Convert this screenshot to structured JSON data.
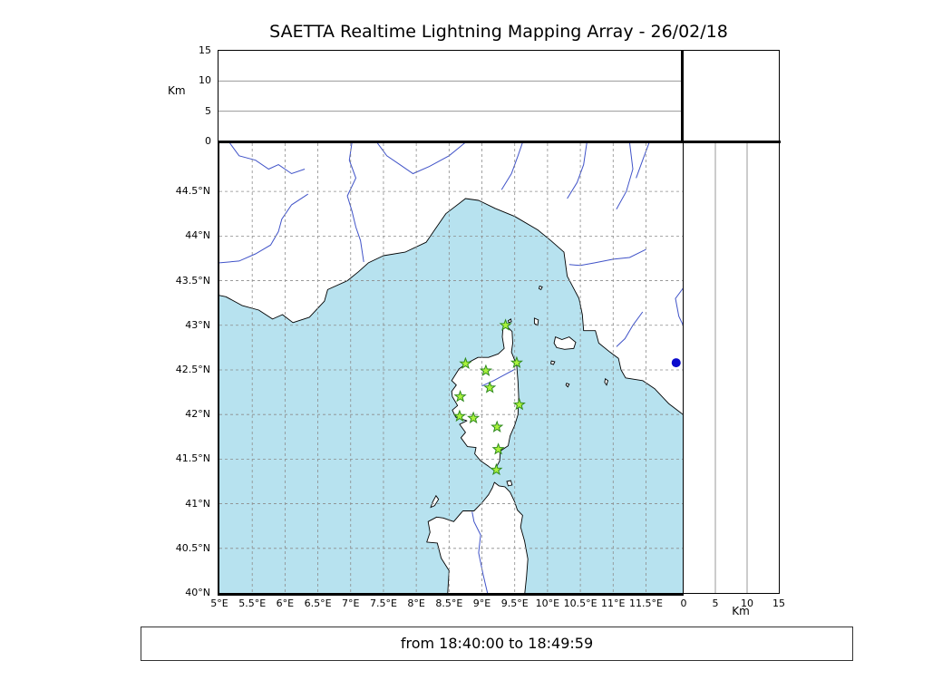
{
  "title": "SAETTA Realtime Lightning Mapping Array - 26/02/18",
  "status_text": "from 18:40:00 to 18:49:59",
  "axes": {
    "km_label": "Km",
    "km_ticks": [
      0,
      5,
      10,
      15
    ],
    "km_max": 15,
    "lon_range": [
      5,
      12.06
    ],
    "lat_range": [
      40,
      45.04
    ],
    "lon_ticks": [
      {
        "value": 5,
        "label": "5°E"
      },
      {
        "value": 5.5,
        "label": "5.5°E"
      },
      {
        "value": 6,
        "label": "6°E"
      },
      {
        "value": 6.5,
        "label": "6.5°E"
      },
      {
        "value": 7,
        "label": "7°E"
      },
      {
        "value": 7.5,
        "label": "7.5°E"
      },
      {
        "value": 8,
        "label": "8°E"
      },
      {
        "value": 8.5,
        "label": "8.5°E"
      },
      {
        "value": 9,
        "label": "9°E"
      },
      {
        "value": 9.5,
        "label": "9.5°E"
      },
      {
        "value": 10,
        "label": "10°E"
      },
      {
        "value": 10.5,
        "label": "10.5°E"
      },
      {
        "value": 11,
        "label": "11°E"
      },
      {
        "value": 11.5,
        "label": "11.5°E"
      }
    ],
    "lat_ticks": [
      {
        "value": 44.5,
        "label": "44.5°N"
      },
      {
        "value": 44,
        "label": "44°N"
      },
      {
        "value": 43.5,
        "label": "43.5°N"
      },
      {
        "value": 43,
        "label": "43°N"
      },
      {
        "value": 42.5,
        "label": "42.5°N"
      },
      {
        "value": 42,
        "label": "42°N"
      },
      {
        "value": 41.5,
        "label": "41.5°N"
      },
      {
        "value": 41,
        "label": "41°N"
      },
      {
        "value": 40.5,
        "label": "40.5°N"
      },
      {
        "value": 40,
        "label": "40°N"
      }
    ]
  },
  "stations_lon_lat": [
    [
      9.36,
      43.0
    ],
    [
      8.75,
      42.57
    ],
    [
      9.06,
      42.49
    ],
    [
      9.53,
      42.58
    ],
    [
      9.12,
      42.3
    ],
    [
      8.67,
      42.2
    ],
    [
      9.57,
      42.11
    ],
    [
      8.66,
      41.98
    ],
    [
      8.87,
      41.96
    ],
    [
      9.23,
      41.86
    ],
    [
      9.25,
      41.61
    ],
    [
      9.22,
      41.38
    ]
  ],
  "lightning_sources_lon_lat": [
    [
      11.96,
      42.58
    ]
  ],
  "colors": {
    "sea": "#b7e2ef",
    "land": "#ffffff",
    "coastline": "#000000",
    "river": "#4053c8",
    "graticule": "#8c8c8c",
    "panel_grid": "#9a9a9a",
    "station_fill": "#aaf23c",
    "station_stroke": "#2f8a1d",
    "source": "#0b0bcd",
    "frame": "#000000"
  },
  "geo": {
    "mainland": [
      [
        4.9,
        43.35
      ],
      [
        5.1,
        43.32
      ],
      [
        5.35,
        43.22
      ],
      [
        5.6,
        43.17
      ],
      [
        5.81,
        43.07
      ],
      [
        5.96,
        43.12
      ],
      [
        6.12,
        43.03
      ],
      [
        6.37,
        43.09
      ],
      [
        6.6,
        43.27
      ],
      [
        6.65,
        43.4
      ],
      [
        6.95,
        43.5
      ],
      [
        7.12,
        43.6
      ],
      [
        7.27,
        43.7
      ],
      [
        7.5,
        43.78
      ],
      [
        7.83,
        43.82
      ],
      [
        8.15,
        43.93
      ],
      [
        8.45,
        44.25
      ],
      [
        8.75,
        44.42
      ],
      [
        8.95,
        44.4
      ],
      [
        9.2,
        44.31
      ],
      [
        9.5,
        44.22
      ],
      [
        9.85,
        44.07
      ],
      [
        10.05,
        43.95
      ],
      [
        10.25,
        43.82
      ],
      [
        10.3,
        43.55
      ],
      [
        10.48,
        43.3
      ],
      [
        10.53,
        43.12
      ],
      [
        10.55,
        42.94
      ],
      [
        10.73,
        42.94
      ],
      [
        10.78,
        42.8
      ],
      [
        10.95,
        42.7
      ],
      [
        11.08,
        42.63
      ],
      [
        11.12,
        42.5
      ],
      [
        11.19,
        42.41
      ],
      [
        11.45,
        42.38
      ],
      [
        11.63,
        42.29
      ],
      [
        11.85,
        42.12
      ],
      [
        12.1,
        41.98
      ],
      [
        12.1,
        45.2
      ],
      [
        4.9,
        45.2
      ]
    ],
    "corsica": [
      [
        9.35,
        43.01
      ],
      [
        9.46,
        42.93
      ],
      [
        9.47,
        42.8
      ],
      [
        9.45,
        42.7
      ],
      [
        9.53,
        42.55
      ],
      [
        9.55,
        42.37
      ],
      [
        9.56,
        42.19
      ],
      [
        9.55,
        42.0
      ],
      [
        9.5,
        41.88
      ],
      [
        9.43,
        41.76
      ],
      [
        9.4,
        41.65
      ],
      [
        9.28,
        41.59
      ],
      [
        9.27,
        41.48
      ],
      [
        9.22,
        41.41
      ],
      [
        9.19,
        41.37
      ],
      [
        9.1,
        41.42
      ],
      [
        8.98,
        41.48
      ],
      [
        8.89,
        41.56
      ],
      [
        8.91,
        41.63
      ],
      [
        8.78,
        41.64
      ],
      [
        8.68,
        41.74
      ],
      [
        8.75,
        41.8
      ],
      [
        8.66,
        41.89
      ],
      [
        8.77,
        41.93
      ],
      [
        8.6,
        41.97
      ],
      [
        8.55,
        42.05
      ],
      [
        8.63,
        42.1
      ],
      [
        8.55,
        42.2
      ],
      [
        8.54,
        42.26
      ],
      [
        8.61,
        42.33
      ],
      [
        8.54,
        42.38
      ],
      [
        8.65,
        42.51
      ],
      [
        8.76,
        42.57
      ],
      [
        8.94,
        42.64
      ],
      [
        9.1,
        42.64
      ],
      [
        9.25,
        42.68
      ],
      [
        9.34,
        42.74
      ],
      [
        9.31,
        42.87
      ],
      [
        9.32,
        42.96
      ]
    ],
    "sardinia": [
      [
        8.47,
        39.9
      ],
      [
        8.5,
        40.25
      ],
      [
        8.38,
        40.39
      ],
      [
        8.32,
        40.56
      ],
      [
        8.16,
        40.57
      ],
      [
        8.21,
        40.68
      ],
      [
        8.18,
        40.8
      ],
      [
        8.31,
        40.85
      ],
      [
        8.41,
        40.84
      ],
      [
        8.57,
        40.8
      ],
      [
        8.71,
        40.92
      ],
      [
        8.88,
        40.92
      ],
      [
        9.0,
        41.01
      ],
      [
        9.1,
        41.1
      ],
      [
        9.16,
        41.18
      ],
      [
        9.19,
        41.24
      ],
      [
        9.26,
        41.2
      ],
      [
        9.35,
        41.19
      ],
      [
        9.43,
        41.13
      ],
      [
        9.5,
        41.02
      ],
      [
        9.54,
        40.93
      ],
      [
        9.62,
        40.87
      ],
      [
        9.59,
        40.74
      ],
      [
        9.65,
        40.58
      ],
      [
        9.7,
        40.38
      ],
      [
        9.68,
        40.18
      ],
      [
        9.64,
        39.9
      ]
    ],
    "islands": [
      [
        [
          10.1,
          42.8
        ],
        [
          10.12,
          42.87
        ],
        [
          10.22,
          42.84
        ],
        [
          10.33,
          42.87
        ],
        [
          10.43,
          42.81
        ],
        [
          10.4,
          42.74
        ],
        [
          10.26,
          42.73
        ],
        [
          10.14,
          42.75
        ]
      ],
      [
        [
          9.8,
          43.08
        ],
        [
          9.86,
          43.06
        ],
        [
          9.85,
          43.0
        ],
        [
          9.8,
          43.02
        ]
      ],
      [
        [
          9.88,
          43.44
        ],
        [
          9.92,
          43.43
        ],
        [
          9.9,
          43.4
        ],
        [
          9.87,
          43.41
        ]
      ],
      [
        [
          10.06,
          42.6
        ],
        [
          10.11,
          42.59
        ],
        [
          10.09,
          42.56
        ],
        [
          10.05,
          42.57
        ]
      ],
      [
        [
          10.29,
          42.35
        ],
        [
          10.33,
          42.34
        ],
        [
          10.31,
          42.31
        ],
        [
          10.28,
          42.33
        ]
      ],
      [
        [
          10.88,
          42.4
        ],
        [
          10.92,
          42.38
        ],
        [
          10.9,
          42.33
        ],
        [
          10.87,
          42.36
        ]
      ],
      [
        [
          8.25,
          41.02
        ],
        [
          8.3,
          41.09
        ],
        [
          8.34,
          41.05
        ],
        [
          8.28,
          40.98
        ],
        [
          8.22,
          40.96
        ]
      ],
      [
        [
          9.38,
          41.25
        ],
        [
          9.44,
          41.26
        ],
        [
          9.46,
          41.21
        ],
        [
          9.4,
          41.2
        ]
      ],
      [
        [
          9.4,
          43.05
        ],
        [
          9.44,
          43.07
        ],
        [
          9.45,
          43.04
        ],
        [
          9.41,
          43.03
        ]
      ]
    ],
    "rivers": [
      [
        [
          6.35,
          44.47
        ],
        [
          6.1,
          44.35
        ],
        [
          5.95,
          44.19
        ],
        [
          5.9,
          44.05
        ],
        [
          5.78,
          43.9
        ],
        [
          5.55,
          43.8
        ],
        [
          5.3,
          43.72
        ],
        [
          5.0,
          43.7
        ]
      ],
      [
        [
          5.15,
          45.05
        ],
        [
          5.3,
          44.9
        ],
        [
          5.55,
          44.85
        ],
        [
          5.75,
          44.75
        ],
        [
          5.9,
          44.8
        ],
        [
          6.1,
          44.7
        ],
        [
          6.3,
          44.75
        ]
      ],
      [
        [
          7.02,
          45.05
        ],
        [
          6.98,
          44.85
        ],
        [
          7.08,
          44.65
        ],
        [
          6.95,
          44.45
        ],
        [
          7.02,
          44.28
        ],
        [
          7.08,
          44.1
        ],
        [
          7.15,
          43.95
        ],
        [
          7.2,
          43.71
        ]
      ],
      [
        [
          7.4,
          45.05
        ],
        [
          7.55,
          44.9
        ],
        [
          7.75,
          44.8
        ],
        [
          7.95,
          44.7
        ],
        [
          8.2,
          44.78
        ],
        [
          8.5,
          44.9
        ],
        [
          8.75,
          45.05
        ]
      ],
      [
        [
          9.3,
          44.52
        ],
        [
          9.45,
          44.7
        ],
        [
          9.55,
          44.9
        ],
        [
          9.62,
          45.05
        ]
      ],
      [
        [
          10.3,
          44.42
        ],
        [
          10.45,
          44.6
        ],
        [
          10.55,
          44.8
        ],
        [
          10.6,
          45.05
        ]
      ],
      [
        [
          11.05,
          44.3
        ],
        [
          11.2,
          44.5
        ],
        [
          11.3,
          44.75
        ],
        [
          11.25,
          45.05
        ]
      ],
      [
        [
          11.55,
          45.05
        ],
        [
          11.45,
          44.85
        ],
        [
          11.35,
          44.65
        ]
      ],
      [
        [
          11.5,
          43.85
        ],
        [
          11.25,
          43.76
        ],
        [
          11.0,
          43.74
        ],
        [
          10.72,
          43.7
        ],
        [
          10.5,
          43.67
        ],
        [
          10.33,
          43.68
        ]
      ],
      [
        [
          11.45,
          43.15
        ],
        [
          11.3,
          43.0
        ],
        [
          11.18,
          42.85
        ],
        [
          11.05,
          42.76
        ]
      ],
      [
        [
          12.1,
          43.45
        ],
        [
          11.95,
          43.3
        ],
        [
          12.0,
          43.1
        ],
        [
          12.1,
          42.95
        ]
      ],
      [
        [
          9.1,
          39.95
        ],
        [
          9.02,
          40.2
        ],
        [
          8.95,
          40.45
        ],
        [
          8.98,
          40.65
        ],
        [
          8.88,
          40.8
        ],
        [
          8.85,
          40.91
        ]
      ],
      [
        [
          9.0,
          42.32
        ],
        [
          9.18,
          42.38
        ],
        [
          9.33,
          42.44
        ],
        [
          9.51,
          42.51
        ]
      ]
    ]
  }
}
